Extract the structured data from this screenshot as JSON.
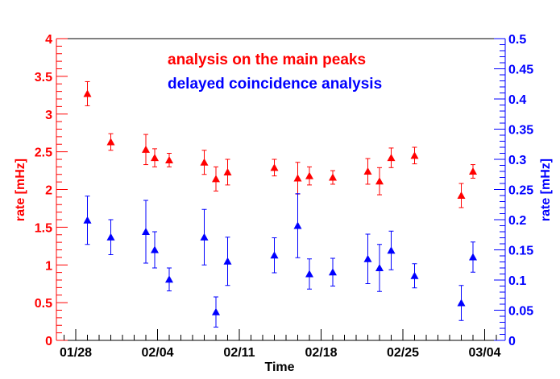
{
  "chart_data": {
    "type": "scatter",
    "xlabel": "Time",
    "ylabel_left": "rate [mHz]",
    "ylabel_right": "rate [mHz]",
    "x_tick_labels": [
      "01/28",
      "02/04",
      "02/11",
      "02/18",
      "02/25",
      "03/04"
    ],
    "y_left": {
      "ylim": [
        0,
        4
      ],
      "ticks": [
        "0",
        "0.5",
        "1",
        "1.5",
        "2",
        "2.5",
        "3",
        "3.5",
        "4"
      ]
    },
    "y_right": {
      "ylim": [
        0,
        0.5
      ],
      "ticks": [
        "0",
        "0.05",
        "0.1",
        "0.15",
        "0.2",
        "0.25",
        "0.3",
        "0.35",
        "0.4",
        "0.45",
        "0.5"
      ]
    },
    "colors": {
      "series_1": "#ff0000",
      "series_2": "#0000ff",
      "axis": "#000000"
    },
    "grid": false,
    "legend_position": "top-center",
    "series": [
      {
        "name": "analysis on the main peaks",
        "axis": "left",
        "points": [
          {
            "x": "01/29",
            "y": 3.27,
            "err": 0.16
          },
          {
            "x": "01/31",
            "y": 2.63,
            "err": 0.11
          },
          {
            "x": "02/03",
            "y": 2.53,
            "err": 0.2
          },
          {
            "x": "02/03",
            "y": 2.42,
            "err": 0.12
          },
          {
            "x": "02/05",
            "y": 2.39,
            "err": 0.09
          },
          {
            "x": "02/08",
            "y": 2.36,
            "err": 0.16
          },
          {
            "x": "02/09",
            "y": 2.14,
            "err": 0.16
          },
          {
            "x": "02/10",
            "y": 2.23,
            "err": 0.17
          },
          {
            "x": "02/14",
            "y": 2.29,
            "err": 0.11
          },
          {
            "x": "02/16",
            "y": 2.15,
            "err": 0.21
          },
          {
            "x": "02/17",
            "y": 2.18,
            "err": 0.12
          },
          {
            "x": "02/19",
            "y": 2.16,
            "err": 0.09
          },
          {
            "x": "02/22",
            "y": 2.24,
            "err": 0.17
          },
          {
            "x": "02/23",
            "y": 2.11,
            "err": 0.18
          },
          {
            "x": "02/24",
            "y": 2.42,
            "err": 0.13
          },
          {
            "x": "02/26",
            "y": 2.45,
            "err": 0.11
          },
          {
            "x": "03/01",
            "y": 1.92,
            "err": 0.16
          },
          {
            "x": "03/02",
            "y": 2.24,
            "err": 0.09
          }
        ]
      },
      {
        "name": "delayed coincidence analysis",
        "axis": "right",
        "points": [
          {
            "x": "01/29",
            "y": 0.199,
            "err": 0.04
          },
          {
            "x": "01/31",
            "y": 0.171,
            "err": 0.029
          },
          {
            "x": "02/03",
            "y": 0.18,
            "err": 0.052
          },
          {
            "x": "02/03",
            "y": 0.15,
            "err": 0.03
          },
          {
            "x": "02/05",
            "y": 0.101,
            "err": 0.019
          },
          {
            "x": "02/08",
            "y": 0.171,
            "err": 0.046
          },
          {
            "x": "02/09",
            "y": 0.047,
            "err": 0.025
          },
          {
            "x": "02/10",
            "y": 0.131,
            "err": 0.04
          },
          {
            "x": "02/14",
            "y": 0.141,
            "err": 0.029
          },
          {
            "x": "02/16",
            "y": 0.19,
            "err": 0.053
          },
          {
            "x": "02/17",
            "y": 0.11,
            "err": 0.025
          },
          {
            "x": "02/19",
            "y": 0.113,
            "err": 0.023
          },
          {
            "x": "02/22",
            "y": 0.135,
            "err": 0.041
          },
          {
            "x": "02/23",
            "y": 0.12,
            "err": 0.039
          },
          {
            "x": "02/24",
            "y": 0.149,
            "err": 0.032
          },
          {
            "x": "02/26",
            "y": 0.107,
            "err": 0.02
          },
          {
            "x": "03/01",
            "y": 0.062,
            "err": 0.029
          },
          {
            "x": "03/02",
            "y": 0.138,
            "err": 0.025
          }
        ]
      }
    ]
  }
}
